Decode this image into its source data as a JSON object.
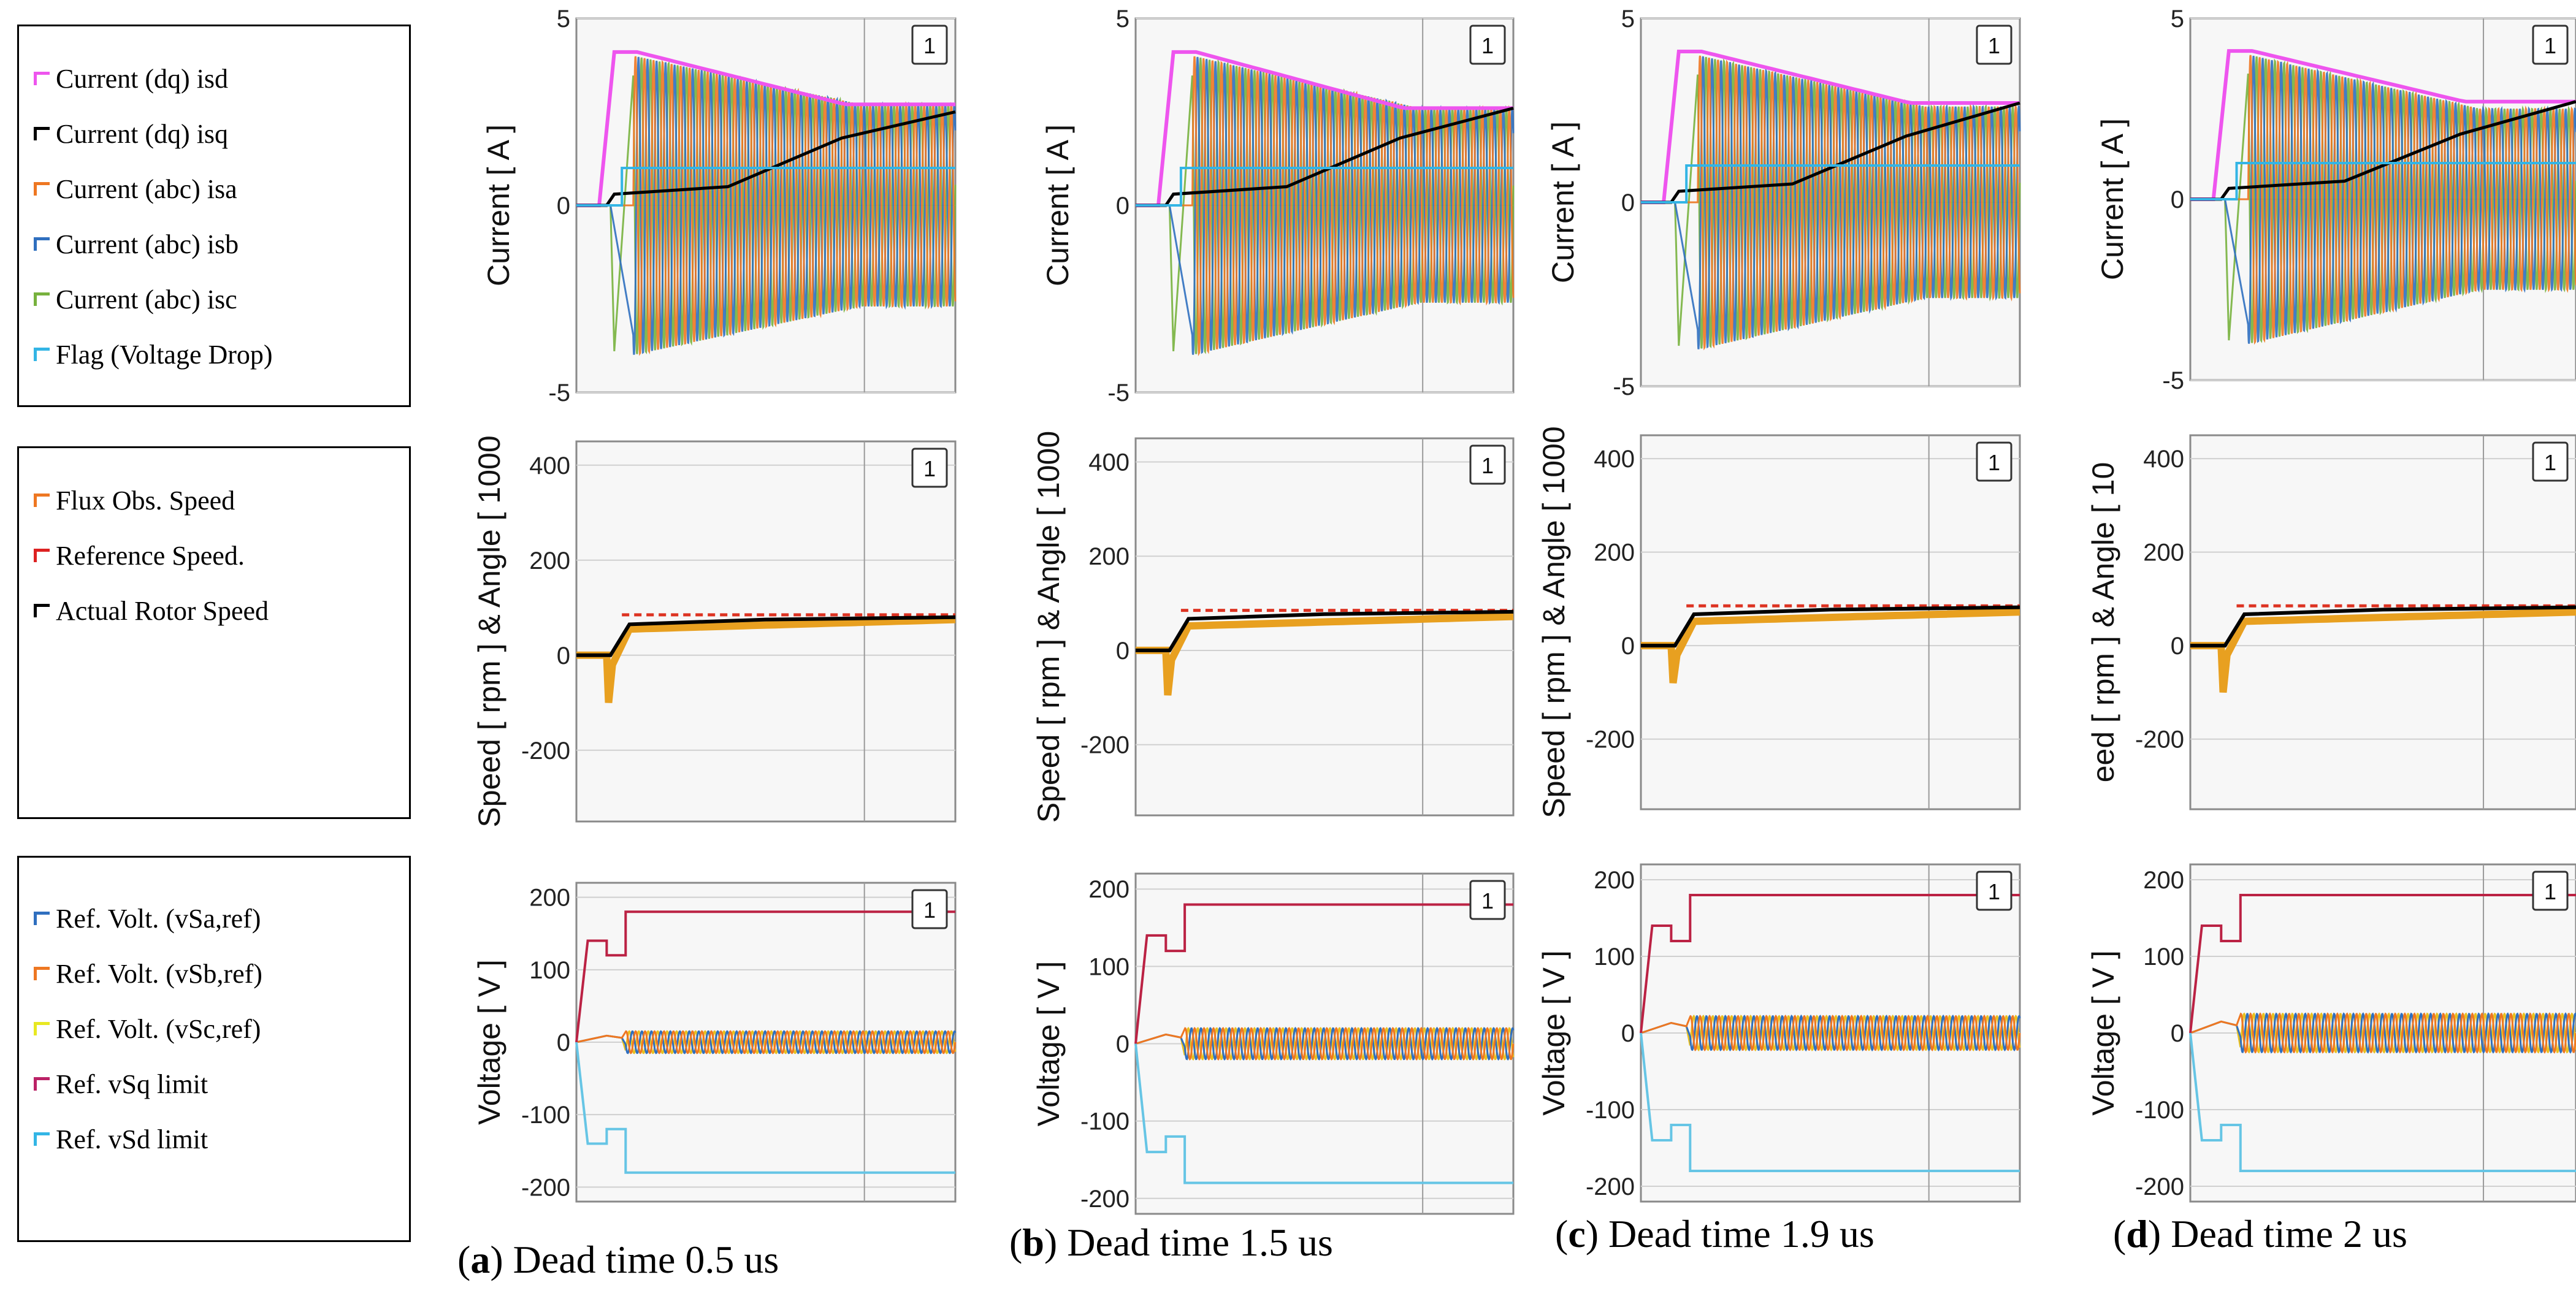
{
  "legends": [
    {
      "entries": [
        {
          "label": "Current (dq) isd",
          "color": "#ee55ee"
        },
        {
          "label": "Current (dq) isq",
          "color": "#000000"
        },
        {
          "label": "Current (abc) isa",
          "color": "#ee7722"
        },
        {
          "label": "Current (abc) isb",
          "color": "#2f6fbf"
        },
        {
          "label": "Current (abc) isc",
          "color": "#77b13d"
        },
        {
          "label": "Flag (Voltage Drop)",
          "color": "#33b5e5"
        }
      ]
    },
    {
      "entries": [
        {
          "label": "Flux Obs. Speed",
          "color": "#ee7722"
        },
        {
          "label": "Reference Speed.",
          "color": "#dd2222"
        },
        {
          "label": "Actual Rotor Speed",
          "color": "#000000"
        }
      ]
    },
    {
      "entries": [
        {
          "label": "Ref. Volt. (vSa,ref)",
          "color": "#2f6fbf"
        },
        {
          "label": "Ref. Volt. (vSb,ref)",
          "color": "#ee7722"
        },
        {
          "label": "Ref. Volt. (vSc,ref)",
          "color": "#e8e822"
        },
        {
          "label": "Ref. vSq limit",
          "color": "#bb2266"
        },
        {
          "label": "Ref. vSd limit",
          "color": "#33b5e5"
        }
      ]
    }
  ],
  "captions": [
    {
      "letter": "a",
      "text": ") Dead time 0.5 us"
    },
    {
      "letter": "b",
      "text": ") Dead time 1.5 us"
    },
    {
      "letter": "c",
      "text": ") Dead time 1.9 us"
    },
    {
      "letter": "d",
      "text": ") Dead time 2 us"
    }
  ],
  "colors": {
    "isd": "#ee55ee",
    "isq": "#000000",
    "isa": "#ee7722",
    "isb": "#2f6fbf",
    "isc": "#77b13d",
    "flag": "#33b5e5",
    "flux_speed": "#e8a020",
    "ref_speed": "#dd3322",
    "rotor_speed": "#000000",
    "vsa": "#2f6fbf",
    "vsb": "#ee7722",
    "vsc": "#e8c020",
    "vsq_limit": "#bb2244",
    "vsd_limit": "#66c5e5",
    "plot_bg": "#f7f7f7",
    "grid": "#d0d0d0"
  },
  "chart_data": [
    {
      "type": "line",
      "panel": "a",
      "row": "current",
      "ylabel": "Current [ A ]",
      "ylim": [
        -5,
        5
      ],
      "yticks": [
        "5",
        "0",
        "-5"
      ],
      "badge": "1",
      "series": [
        {
          "name": "Current (dq) isd",
          "peak": 4.1,
          "final": 2.7
        },
        {
          "name": "Current (dq) isq",
          "peak": 0.3,
          "final": 2.5
        },
        {
          "name": "Current (abc) isa",
          "amplitude_start": 4.0,
          "amplitude_end": 2.7
        },
        {
          "name": "Current (abc) isb",
          "amplitude_start": 4.0,
          "amplitude_end": 2.7
        },
        {
          "name": "Current (abc) isc",
          "min": -3.9
        },
        {
          "name": "Flag (Voltage Drop)",
          "level": 1
        }
      ]
    },
    {
      "type": "line",
      "panel": "a",
      "row": "speed",
      "ylabel": "Speed [ rpm ] & Angle  [ 1000",
      "ylim": [
        -350,
        450
      ],
      "yticks": [
        "400",
        "200",
        "0",
        "-200"
      ],
      "badge": "1",
      "series": [
        {
          "name": "Flux Obs. Speed",
          "min": -100,
          "final": 75
        },
        {
          "name": "Reference Speed.",
          "final": 85
        },
        {
          "name": "Actual Rotor Speed",
          "final": 80
        }
      ]
    },
    {
      "type": "line",
      "panel": "a",
      "row": "voltage",
      "ylabel": "Voltage [ V ]",
      "ylim": [
        -220,
        220
      ],
      "yticks": [
        "200",
        "100",
        "0",
        "-100",
        "-200"
      ],
      "badge": "1",
      "series": [
        {
          "name": "Ref. Volt. (vSa,ref)",
          "amplitude": 15
        },
        {
          "name": "Ref. Volt. (vSb,ref)",
          "amplitude": 15
        },
        {
          "name": "Ref. Volt. (vSc,ref)",
          "amplitude": 15
        },
        {
          "name": "Ref. vSq limit",
          "steps": [
            140,
            120,
            180
          ]
        },
        {
          "name": "Ref. vSd limit",
          "steps": [
            -140,
            -120,
            -180
          ]
        }
      ]
    },
    {
      "type": "line",
      "panel": "b",
      "row": "current",
      "ylabel": "Current [ A ]",
      "ylim": [
        -5,
        5
      ],
      "yticks": [
        "5",
        "0",
        "-5"
      ],
      "badge": "1",
      "series": [
        {
          "name": "Current (dq) isd",
          "peak": 4.1,
          "final": 2.6
        },
        {
          "name": "Current (dq) isq",
          "peak": 0.3,
          "final": 2.6
        },
        {
          "name": "Current (abc) isa",
          "amplitude_start": 4.0,
          "amplitude_end": 2.6
        },
        {
          "name": "Current (abc) isb",
          "amplitude_start": 4.0,
          "amplitude_end": 2.6
        },
        {
          "name": "Current (abc) isc",
          "min": -3.9
        },
        {
          "name": "Flag (Voltage Drop)",
          "level": 1
        }
      ]
    },
    {
      "type": "line",
      "panel": "b",
      "row": "speed",
      "ylabel": "Speed [ rpm ] & Angle  [ 1000",
      "ylim": [
        -350,
        450
      ],
      "yticks": [
        "400",
        "200",
        "0",
        "-200"
      ],
      "badge": "1",
      "series": [
        {
          "name": "Flux Obs. Speed",
          "min": -95,
          "final": 72
        },
        {
          "name": "Reference Speed.",
          "final": 85
        },
        {
          "name": "Actual Rotor Speed",
          "final": 82
        }
      ]
    },
    {
      "type": "line",
      "panel": "b",
      "row": "voltage",
      "ylabel": "Voltage [ V ]",
      "ylim": [
        -220,
        220
      ],
      "yticks": [
        "200",
        "100",
        "0",
        "-100",
        "-200"
      ],
      "badge": "1",
      "series": [
        {
          "name": "Ref. Volt. (vSa,ref)",
          "amplitude": 20
        },
        {
          "name": "Ref. Volt. (vSb,ref)",
          "amplitude": 20
        },
        {
          "name": "Ref. Volt. (vSc,ref)",
          "amplitude": 20
        },
        {
          "name": "Ref. vSq limit",
          "steps": [
            140,
            120,
            180
          ]
        },
        {
          "name": "Ref. vSd limit",
          "steps": [
            -140,
            -120,
            -180
          ]
        }
      ]
    },
    {
      "type": "line",
      "panel": "c",
      "row": "current",
      "ylabel": "Current [ A ]",
      "ylim": [
        -5,
        5
      ],
      "yticks": [
        "5",
        "0",
        "-5"
      ],
      "badge": "1",
      "series": [
        {
          "name": "Current (dq) isd",
          "peak": 4.1,
          "final": 2.7
        },
        {
          "name": "Current (dq) isq",
          "peak": 0.3,
          "final": 2.7
        },
        {
          "name": "Current (abc) isa",
          "amplitude_start": 4.0,
          "amplitude_end": 2.6
        },
        {
          "name": "Current (abc) isb",
          "amplitude_start": 4.0,
          "amplitude_end": 2.6
        },
        {
          "name": "Current (abc) isc",
          "min": -3.9
        },
        {
          "name": "Flag (Voltage Drop)",
          "level": 1
        }
      ]
    },
    {
      "type": "line",
      "panel": "c",
      "row": "speed",
      "ylabel": "Speed [ rpm ] & Angle  [ 1000",
      "ylim": [
        -350,
        450
      ],
      "yticks": [
        "400",
        "200",
        "0",
        "-200"
      ],
      "badge": "1",
      "series": [
        {
          "name": "Flux Obs. Speed",
          "min": -80,
          "final": 72
        },
        {
          "name": "Reference Speed.",
          "final": 85
        },
        {
          "name": "Actual Rotor Speed",
          "final": 82
        }
      ]
    },
    {
      "type": "line",
      "panel": "c",
      "row": "voltage",
      "ylabel": "Voltage [ V ]",
      "ylim": [
        -220,
        220
      ],
      "yticks": [
        "200",
        "100",
        "0",
        "-100",
        "-200"
      ],
      "badge": "1",
      "series": [
        {
          "name": "Ref. Volt. (vSa,ref)",
          "amplitude": 22
        },
        {
          "name": "Ref. Volt. (vSb,ref)",
          "amplitude": 22
        },
        {
          "name": "Ref. Volt. (vSc,ref)",
          "amplitude": 22
        },
        {
          "name": "Ref. vSq limit",
          "steps": [
            140,
            120,
            180
          ]
        },
        {
          "name": "Ref. vSd limit",
          "steps": [
            -140,
            -120,
            -180
          ]
        }
      ]
    },
    {
      "type": "line",
      "panel": "d",
      "row": "current",
      "ylabel": "Current [ A ]",
      "ylim": [
        -5,
        5
      ],
      "yticks": [
        "5",
        "0",
        "-5"
      ],
      "badge": "1",
      "series": [
        {
          "name": "Current (dq) isd",
          "peak": 4.1,
          "final": 2.7
        },
        {
          "name": "Current (dq) isq",
          "peak": 0.3,
          "final": 2.7
        },
        {
          "name": "Current (abc) isa",
          "amplitude_start": 4.0,
          "amplitude_end": 2.5
        },
        {
          "name": "Current (abc) isb",
          "amplitude_start": 4.0,
          "amplitude_end": 2.5
        },
        {
          "name": "Current (abc) isc",
          "min": -3.9
        },
        {
          "name": "Flag (Voltage Drop)",
          "level": 1
        }
      ]
    },
    {
      "type": "line",
      "panel": "d",
      "row": "speed",
      "ylabel": "eed [ rpm ] & Angle  [ 10",
      "ylim": [
        -350,
        450
      ],
      "yticks": [
        "400",
        "200",
        "0",
        "-200"
      ],
      "badge": "1",
      "series": [
        {
          "name": "Flux Obs. Speed",
          "min": -100,
          "final": 72
        },
        {
          "name": "Reference Speed.",
          "final": 85
        },
        {
          "name": "Actual Rotor Speed",
          "final": 82
        }
      ]
    },
    {
      "type": "line",
      "panel": "d",
      "row": "voltage",
      "ylabel": "Voltage [ V ]",
      "ylim": [
        -220,
        220
      ],
      "yticks": [
        "200",
        "100",
        "0",
        "-100",
        "-200"
      ],
      "badge": "1",
      "series": [
        {
          "name": "Ref. Volt. (vSa,ref)",
          "amplitude": 25
        },
        {
          "name": "Ref. Volt. (vSb,ref)",
          "amplitude": 25
        },
        {
          "name": "Ref. Volt. (vSc,ref)",
          "amplitude": 25
        },
        {
          "name": "Ref. vSq limit",
          "steps": [
            140,
            120,
            180
          ]
        },
        {
          "name": "Ref. vSd limit",
          "steps": [
            -140,
            -120,
            -180
          ]
        }
      ]
    }
  ]
}
